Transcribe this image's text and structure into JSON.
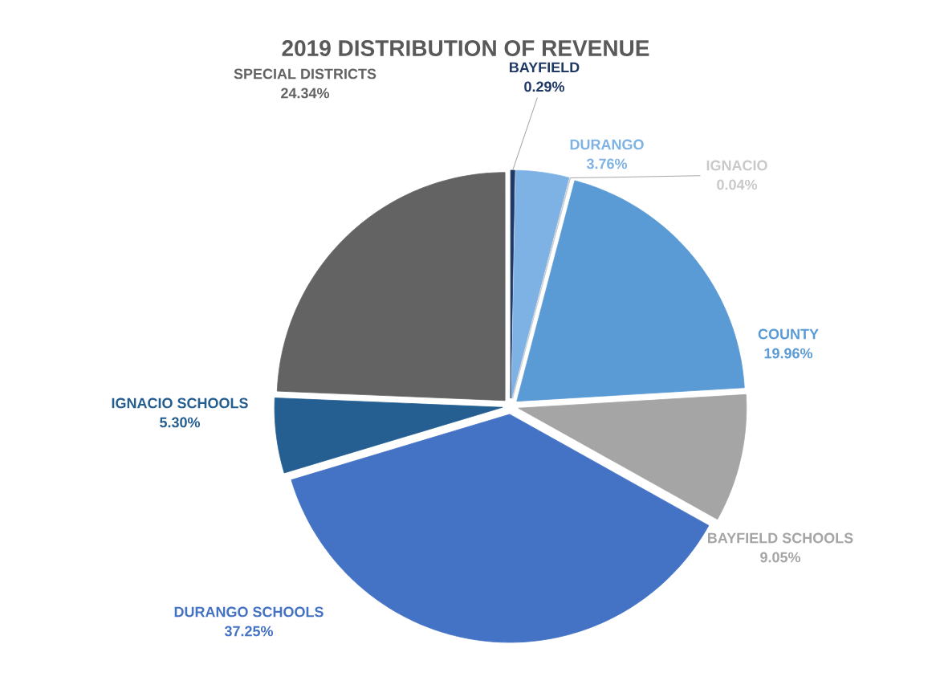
{
  "chart_data": {
    "type": "pie",
    "title": "2019 DISTRIBUTION OF REVENUE",
    "categories": [
      "BAYFIELD",
      "DURANGO",
      "IGNACIO",
      "COUNTY",
      "BAYFIELD SCHOOLS",
      "DURANGO SCHOOLS",
      "IGNACIO SCHOOLS",
      "SPECIAL DISTRICTS"
    ],
    "values": [
      0.29,
      3.76,
      0.04,
      19.96,
      9.05,
      37.25,
      5.3,
      24.34
    ],
    "value_labels": [
      "0.29%",
      "3.76%",
      "0.04%",
      "19.96%",
      "9.05%",
      "37.25%",
      "5.30%",
      "24.34%"
    ],
    "colors": [
      "#203864",
      "#7eb2e4",
      "#c9c9c9",
      "#5b9bd5",
      "#a5a5a5",
      "#4472c4",
      "#255e91",
      "#636363"
    ]
  }
}
